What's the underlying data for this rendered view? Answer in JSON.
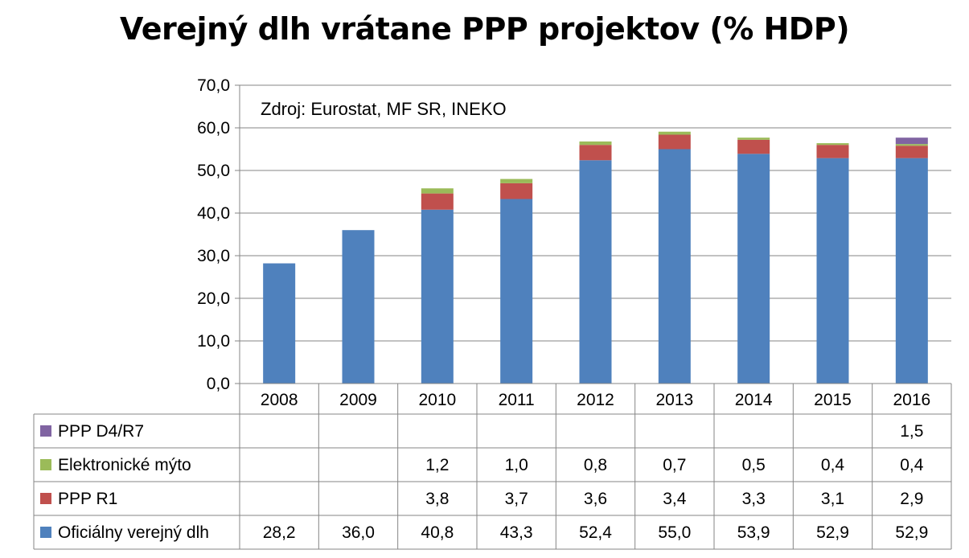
{
  "chart_data": {
    "type": "bar",
    "stacked": true,
    "title": "Verejný dlh vrátane PPP projektov (% HDP)",
    "annotation": "Zdroj: Eurostat, MF SR, INEKO",
    "categories": [
      "2008",
      "2009",
      "2010",
      "2011",
      "2012",
      "2013",
      "2014",
      "2015",
      "2016"
    ],
    "ylim": [
      0,
      70
    ],
    "yticks": [
      "0,0",
      "10,0",
      "20,0",
      "30,0",
      "40,0",
      "50,0",
      "60,0",
      "70,0"
    ],
    "ytick_values": [
      0,
      10,
      20,
      30,
      40,
      50,
      60,
      70
    ],
    "grid": true,
    "data_table": true,
    "series": [
      {
        "name": "Oficiálny verejný dlh",
        "color": "#4F81BD",
        "values": [
          28.2,
          36.0,
          40.8,
          43.3,
          52.4,
          55.0,
          53.9,
          52.9,
          52.9
        ],
        "labels": [
          "28,2",
          "36,0",
          "40,8",
          "43,3",
          "52,4",
          "55,0",
          "53,9",
          "52,9",
          "52,9"
        ]
      },
      {
        "name": "PPP R1",
        "color": "#C0504D",
        "values": [
          null,
          null,
          3.8,
          3.7,
          3.6,
          3.4,
          3.3,
          3.1,
          2.9
        ],
        "labels": [
          "",
          "",
          "3,8",
          "3,7",
          "3,6",
          "3,4",
          "3,3",
          "3,1",
          "2,9"
        ]
      },
      {
        "name": "Elektronické mýto",
        "color": "#9BBB59",
        "values": [
          null,
          null,
          1.2,
          1.0,
          0.8,
          0.7,
          0.5,
          0.4,
          0.4
        ],
        "labels": [
          "",
          "",
          "1,2",
          "1,0",
          "0,8",
          "0,7",
          "0,5",
          "0,4",
          "0,4"
        ]
      },
      {
        "name": "PPP D4/R7",
        "color": "#8064A2",
        "values": [
          null,
          null,
          null,
          null,
          null,
          null,
          null,
          null,
          1.5
        ],
        "labels": [
          "",
          "",
          "",
          "",
          "",
          "",
          "",
          "",
          "1,5"
        ]
      }
    ]
  }
}
